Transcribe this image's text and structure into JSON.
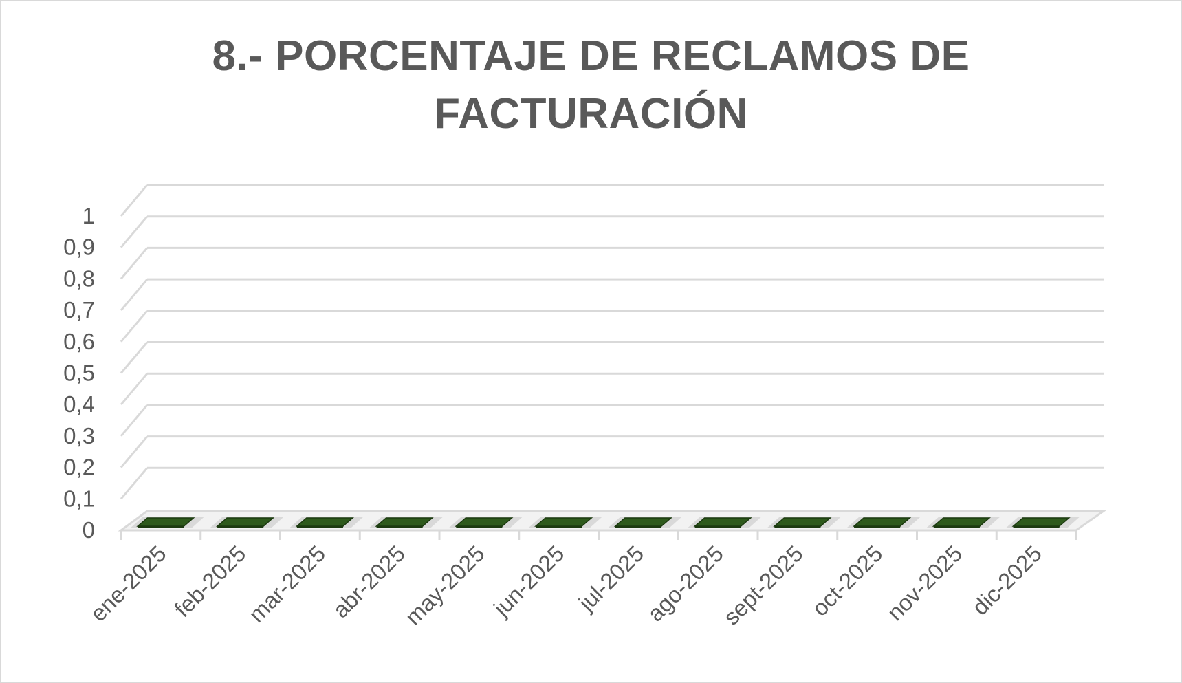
{
  "chart_data": {
    "type": "bar",
    "title_lines": [
      "8.- PORCENTAJE DE RECLAMOS DE",
      "FACTURACIÓN"
    ],
    "categories": [
      "ene-2025",
      "feb-2025",
      "mar-2025",
      "abr-2025",
      "may-2025",
      "jun-2025",
      "jul-2025",
      "ago-2025",
      "sept-2025",
      "oct-2025",
      "nov-2025",
      "dic-2025"
    ],
    "values": [
      0,
      0,
      0,
      0,
      0,
      0,
      0,
      0,
      0,
      0,
      0,
      0
    ],
    "ylim": [
      0,
      1
    ],
    "y_ticks": [
      "0",
      "0,1",
      "0,2",
      "0,3",
      "0,4",
      "0,5",
      "0,6",
      "0,7",
      "0,8",
      "0,9",
      "1"
    ],
    "grid": true,
    "legend": "none",
    "style": "3d-column",
    "colors": {
      "bar": "#2e5a1c",
      "bar_dark": "#1c3a10",
      "grid": "#d9d9d9",
      "axis": "#d9d9d9",
      "text": "#595959"
    }
  }
}
